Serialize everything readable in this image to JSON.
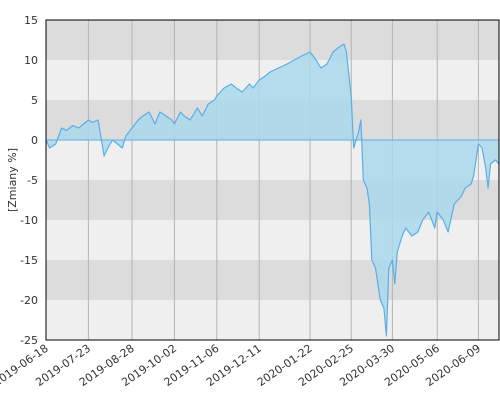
{
  "colors": {
    "band_dark": "#dcdcdc",
    "band_light": "#efefef",
    "grid": "#b4b4b4",
    "line": "#5aaee6",
    "fill": "#a9d8ec",
    "axis": "#000000"
  },
  "chart_data": {
    "type": "area",
    "title": "",
    "xlabel": "",
    "ylabel": "[Zmiany %]",
    "ylim": [
      -25,
      15
    ],
    "y_ticks": [
      15,
      10,
      5,
      0,
      -5,
      -10,
      -15,
      -20,
      -25
    ],
    "x_range": [
      "2019-06-18",
      "2020-06-26"
    ],
    "x_ticks": [
      "2019-06-18",
      "2019-07-23",
      "2019-08-28",
      "2019-10-02",
      "2019-11-06",
      "2019-12-11",
      "2020-01-22",
      "2020-02-25",
      "2020-03-30",
      "2020-05-06",
      "2020-06-09"
    ],
    "grid": true,
    "legend": "none",
    "series": [
      {
        "x": [
          "2019-06-18",
          "2019-06-21",
          "2019-06-26",
          "2019-07-01",
          "2019-07-05",
          "2019-07-10",
          "2019-07-15",
          "2019-07-19",
          "2019-07-23",
          "2019-07-26",
          "2019-07-31",
          "2019-08-05",
          "2019-08-08",
          "2019-08-12",
          "2019-08-16",
          "2019-08-20",
          "2019-08-23",
          "2019-08-28",
          "2019-09-02",
          "2019-09-06",
          "2019-09-11",
          "2019-09-16",
          "2019-09-20",
          "2019-09-25",
          "2019-09-30",
          "2019-10-02",
          "2019-10-07",
          "2019-10-10",
          "2019-10-15",
          "2019-10-21",
          "2019-10-25",
          "2019-10-30",
          "2019-11-04",
          "2019-11-06",
          "2019-11-12",
          "2019-11-18",
          "2019-11-22",
          "2019-11-27",
          "2019-12-03",
          "2019-12-06",
          "2019-12-11",
          "2019-12-16",
          "2019-12-20",
          "2019-12-27",
          "2020-01-03",
          "2020-01-09",
          "2020-01-15",
          "2020-01-22",
          "2020-01-27",
          "2020-01-31",
          "2020-02-05",
          "2020-02-10",
          "2020-02-14",
          "2020-02-19",
          "2020-02-21",
          "2020-02-25",
          "2020-02-27",
          "2020-03-02",
          "2020-03-04",
          "2020-03-06",
          "2020-03-09",
          "2020-03-11",
          "2020-03-13",
          "2020-03-16",
          "2020-03-18",
          "2020-03-20",
          "2020-03-23",
          "2020-03-25",
          "2020-03-27",
          "2020-03-30",
          "2020-04-01",
          "2020-04-03",
          "2020-04-07",
          "2020-04-10",
          "2020-04-15",
          "2020-04-20",
          "2020-04-24",
          "2020-04-29",
          "2020-05-04",
          "2020-05-06",
          "2020-05-11",
          "2020-05-15",
          "2020-05-20",
          "2020-05-26",
          "2020-05-29",
          "2020-06-03",
          "2020-06-05",
          "2020-06-09",
          "2020-06-12",
          "2020-06-15",
          "2020-06-17",
          "2020-06-19",
          "2020-06-23",
          "2020-06-26"
        ],
        "y": [
          0,
          -1,
          -0.5,
          1.5,
          1.2,
          1.8,
          1.5,
          2,
          2.5,
          2.2,
          2.5,
          -2,
          -1,
          0,
          -0.5,
          -1,
          0.5,
          1.5,
          2.5,
          3,
          3.5,
          2,
          3.5,
          3,
          2.5,
          2,
          3.5,
          3,
          2.5,
          4,
          3,
          4.5,
          5,
          5.5,
          6.5,
          7,
          6.5,
          6,
          7,
          6.5,
          7.5,
          8,
          8.5,
          9,
          9.5,
          10,
          10.5,
          11,
          10,
          9,
          9.5,
          11,
          11.5,
          12,
          11,
          5.5,
          -1,
          1,
          2.5,
          -5,
          -6,
          -8,
          -15,
          -16,
          -18,
          -20,
          -21,
          -24.5,
          -16,
          -15,
          -18,
          -14,
          -12,
          -11,
          -12,
          -11.5,
          -10,
          -9,
          -11,
          -9,
          -10,
          -11.5,
          -8,
          -7,
          -6,
          -5.5,
          -4.5,
          -0.5,
          -1,
          -3.5,
          -6,
          -3,
          -2.5,
          -3
        ]
      }
    ]
  }
}
